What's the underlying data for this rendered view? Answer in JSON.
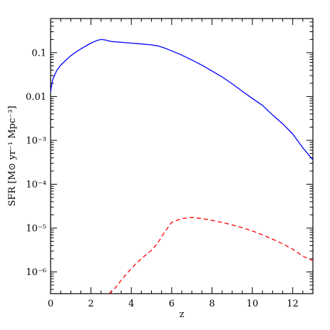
{
  "chart_data": {
    "type": "line",
    "xlabel": "z",
    "ylabel": "SFR [M⊙ yr⁻¹ Mpc⁻³]",
    "xlim": [
      0,
      13
    ],
    "ylim": [
      3.2e-07,
      0.6
    ],
    "yscale": "log",
    "grid": false,
    "x_ticks": [
      {
        "value": 0,
        "label": "0"
      },
      {
        "value": 2,
        "label": "2"
      },
      {
        "value": 4,
        "label": "4"
      },
      {
        "value": 6,
        "label": "6"
      },
      {
        "value": 8,
        "label": "8"
      },
      {
        "value": 10,
        "label": "10"
      },
      {
        "value": 12,
        "label": "12"
      }
    ],
    "y_ticks": [
      {
        "value": 0.1,
        "label": "0.1"
      },
      {
        "value": 0.01,
        "label": "0.01"
      },
      {
        "value": 0.001,
        "label": "10⁻³"
      },
      {
        "value": 0.0001,
        "label": "10⁻⁴"
      },
      {
        "value": 1e-05,
        "label": "10⁻⁵"
      },
      {
        "value": 1e-06,
        "label": "10⁻⁶"
      }
    ],
    "series": [
      {
        "color": "#0000ff",
        "style": "solid",
        "x": [
          0,
          0.1,
          0.3,
          0.5,
          0.8,
          1.0,
          1.3,
          1.6,
          2.0,
          2.3,
          2.5,
          2.7,
          3.0,
          3.5,
          4.0,
          4.5,
          5.0,
          5.3,
          5.6,
          6.0,
          6.5,
          7.0,
          7.5,
          8.0,
          8.5,
          9.0,
          9.5,
          10.0,
          10.5,
          11.0,
          11.5,
          12.0,
          12.5,
          13.0
        ],
        "y": [
          0.013,
          0.024,
          0.039,
          0.052,
          0.07,
          0.085,
          0.107,
          0.13,
          0.165,
          0.19,
          0.2,
          0.195,
          0.18,
          0.172,
          0.165,
          0.158,
          0.15,
          0.143,
          0.13,
          0.11,
          0.088,
          0.068,
          0.052,
          0.038,
          0.028,
          0.0195,
          0.0132,
          0.009,
          0.0063,
          0.0038,
          0.0024,
          0.0014,
          0.00068,
          0.00036
        ]
      },
      {
        "color": "#ff0000",
        "style": "dashed",
        "x": [
          2.9,
          3.2,
          3.5,
          3.8,
          4.2,
          4.6,
          5.0,
          5.3,
          5.6,
          6.0,
          6.5,
          7.0,
          7.5,
          8.0,
          8.5,
          9.0,
          9.5,
          10.0,
          10.5,
          11.0,
          11.5,
          12.0,
          12.5,
          13.0
        ],
        "y": [
          3.2e-07,
          4.3e-07,
          6.5e-07,
          9.5e-07,
          1.5e-06,
          2.2e-06,
          3.1e-06,
          4.5e-06,
          7.5e-06,
          1.35e-05,
          1.65e-05,
          1.75e-05,
          1.65e-05,
          1.5e-05,
          1.35e-05,
          1.18e-05,
          1.02e-05,
          8.6e-06,
          7e-06,
          5.6e-06,
          4.4e-06,
          3.3e-06,
          2.3e-06,
          1.8e-06
        ]
      }
    ]
  }
}
